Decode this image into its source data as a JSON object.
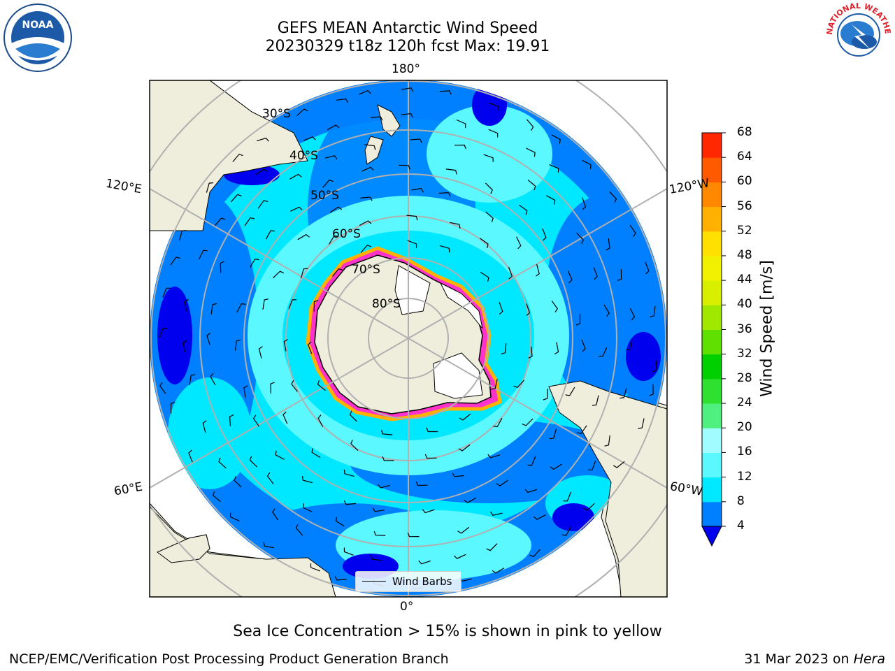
{
  "header": {
    "title_line1": "GEFS MEAN Antarctic Wind Speed",
    "title_line2": "20230329 t18z 120h fcst   Max: 19.91"
  },
  "logos": {
    "noaa_text": "NOAA",
    "nws_text": "NATIONAL WEATHER SERVICE"
  },
  "map": {
    "projection": "south-polar-stereographic",
    "latitude_labels": [
      "30°S",
      "40°S",
      "50°S",
      "60°S",
      "70°S",
      "80°S"
    ],
    "longitude_labels": {
      "top": "180°",
      "left_upper": "120°E",
      "right_upper": "120°W",
      "left_lower": "60°E",
      "right_lower": "60°W",
      "bottom": "0°"
    },
    "legend_label": "Wind Barbs",
    "colors": {
      "land": "#efeedc",
      "ocean_outside": "#ffffff",
      "wind_4_8": "#0080ff",
      "wind_8_12": "#00e8ff",
      "wind_12_16": "#5cf8ff",
      "wind_max": "#0000ee",
      "sea_ice": "#ff33cc",
      "sea_ice_edge": "#ffb000",
      "grid": "#b0b0b0"
    }
  },
  "colorbar": {
    "label": "Wind Speed [m/s]",
    "ticks": [
      "4",
      "8",
      "12",
      "16",
      "20",
      "24",
      "28",
      "32",
      "36",
      "40",
      "44",
      "48",
      "52",
      "56",
      "60",
      "64",
      "68"
    ],
    "colors": [
      "#0080ff",
      "#00e8ff",
      "#5cf8ff",
      "#a0fcff",
      "#50f080",
      "#30e030",
      "#00d000",
      "#60e000",
      "#a0e800",
      "#d8f000",
      "#f0f000",
      "#ffe000",
      "#ffb000",
      "#ff8800",
      "#ff5a00",
      "#ff2800"
    ],
    "under_color": "#0000ee"
  },
  "footer": {
    "note": "Sea Ice Concentration > 15% is shown in pink to yellow",
    "credit": "NCEP/EMC/Verification Post Processing Product Generation Branch",
    "date": "31 Mar 2023 on",
    "machine": "Hera"
  }
}
